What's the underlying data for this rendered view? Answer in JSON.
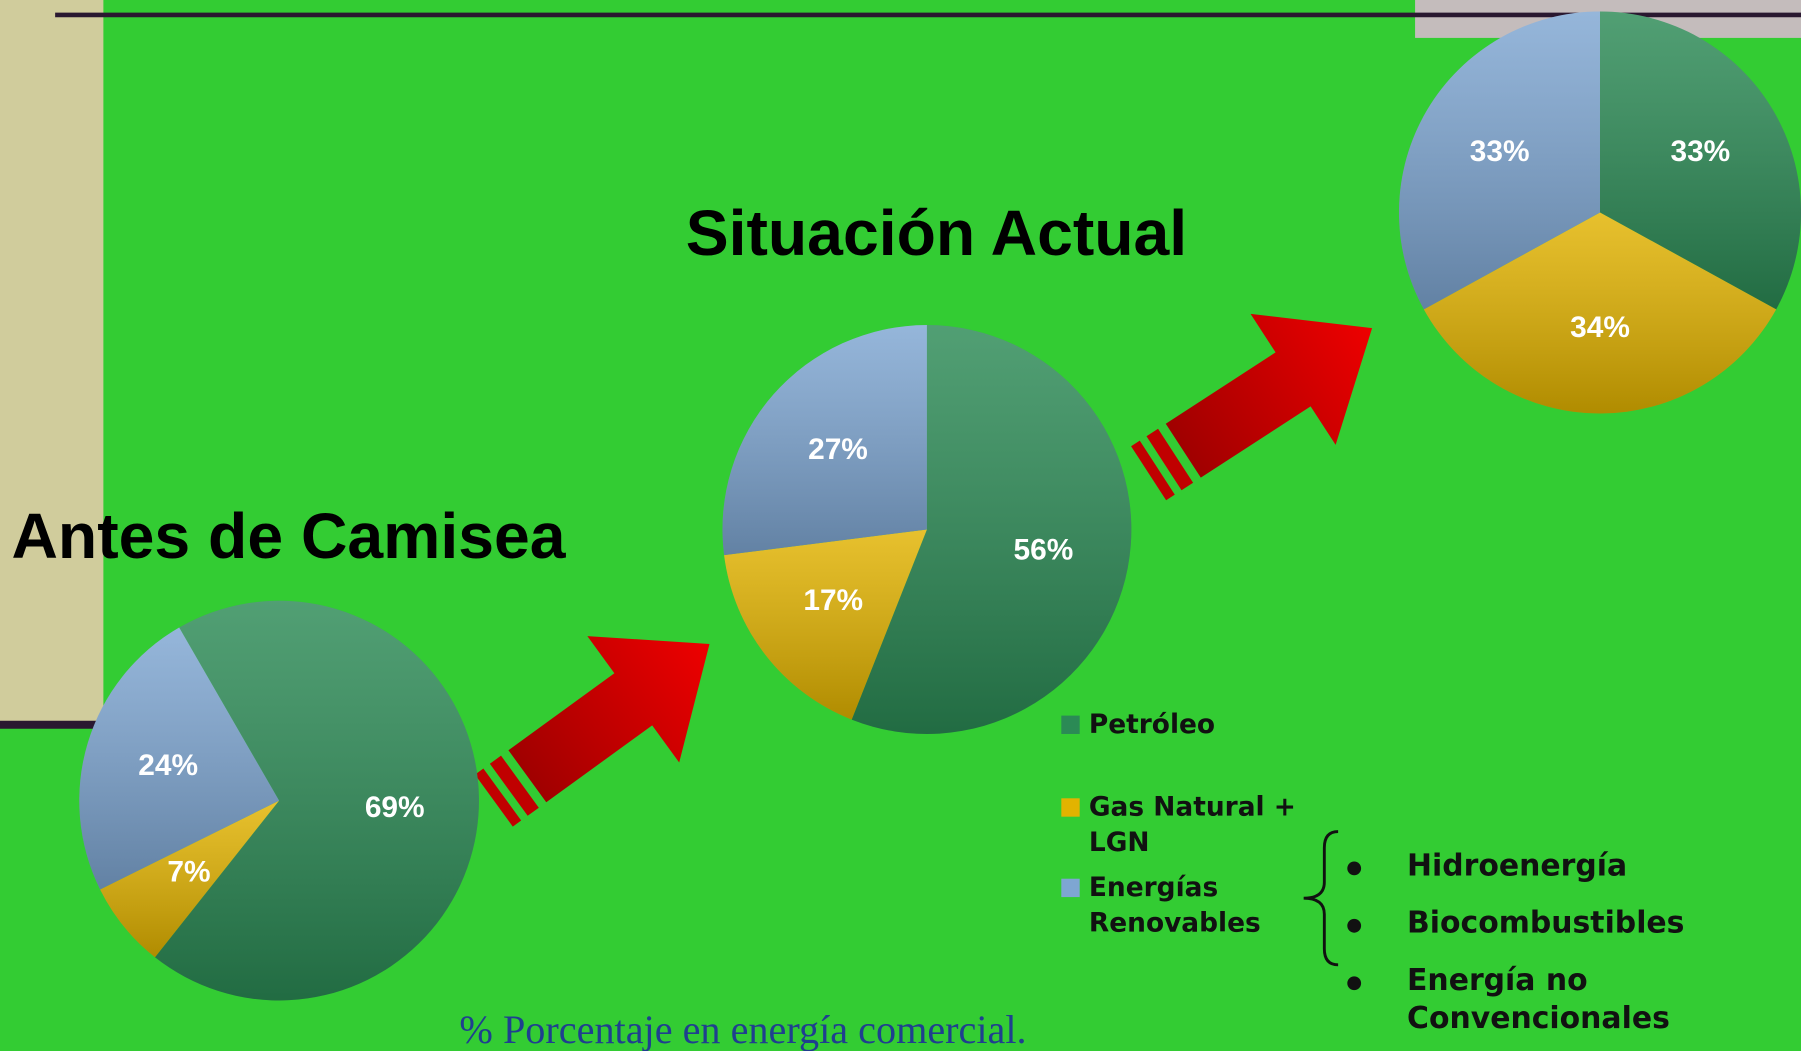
{
  "chart_data": [
    {
      "type": "pie",
      "title": "Antes de Camisea",
      "values": [
        69,
        7,
        24
      ],
      "value_labels": [
        "69%",
        "7%",
        "24%"
      ]
    },
    {
      "type": "pie",
      "title": "Situación Actual",
      "categories": [
        "Petróleo",
        "Gas Natural + LGN",
        "Energías Renovables"
      ],
      "colors": [
        "#2b8a55",
        "#e2b300",
        "#7ea6d2"
      ],
      "values": [
        56,
        17,
        27
      ],
      "value_labels": [
        "56%",
        "17%",
        "27%"
      ]
    },
    {
      "type": "pie",
      "values": [
        33,
        34,
        33
      ],
      "value_labels": [
        "33%",
        "34%",
        "33%"
      ]
    }
  ],
  "renewables_list": [
    "Hidroenergía",
    "Biocombustibles",
    "Energía no Convencionales"
  ],
  "footnote": "% Porcentaje en energía comercial."
}
